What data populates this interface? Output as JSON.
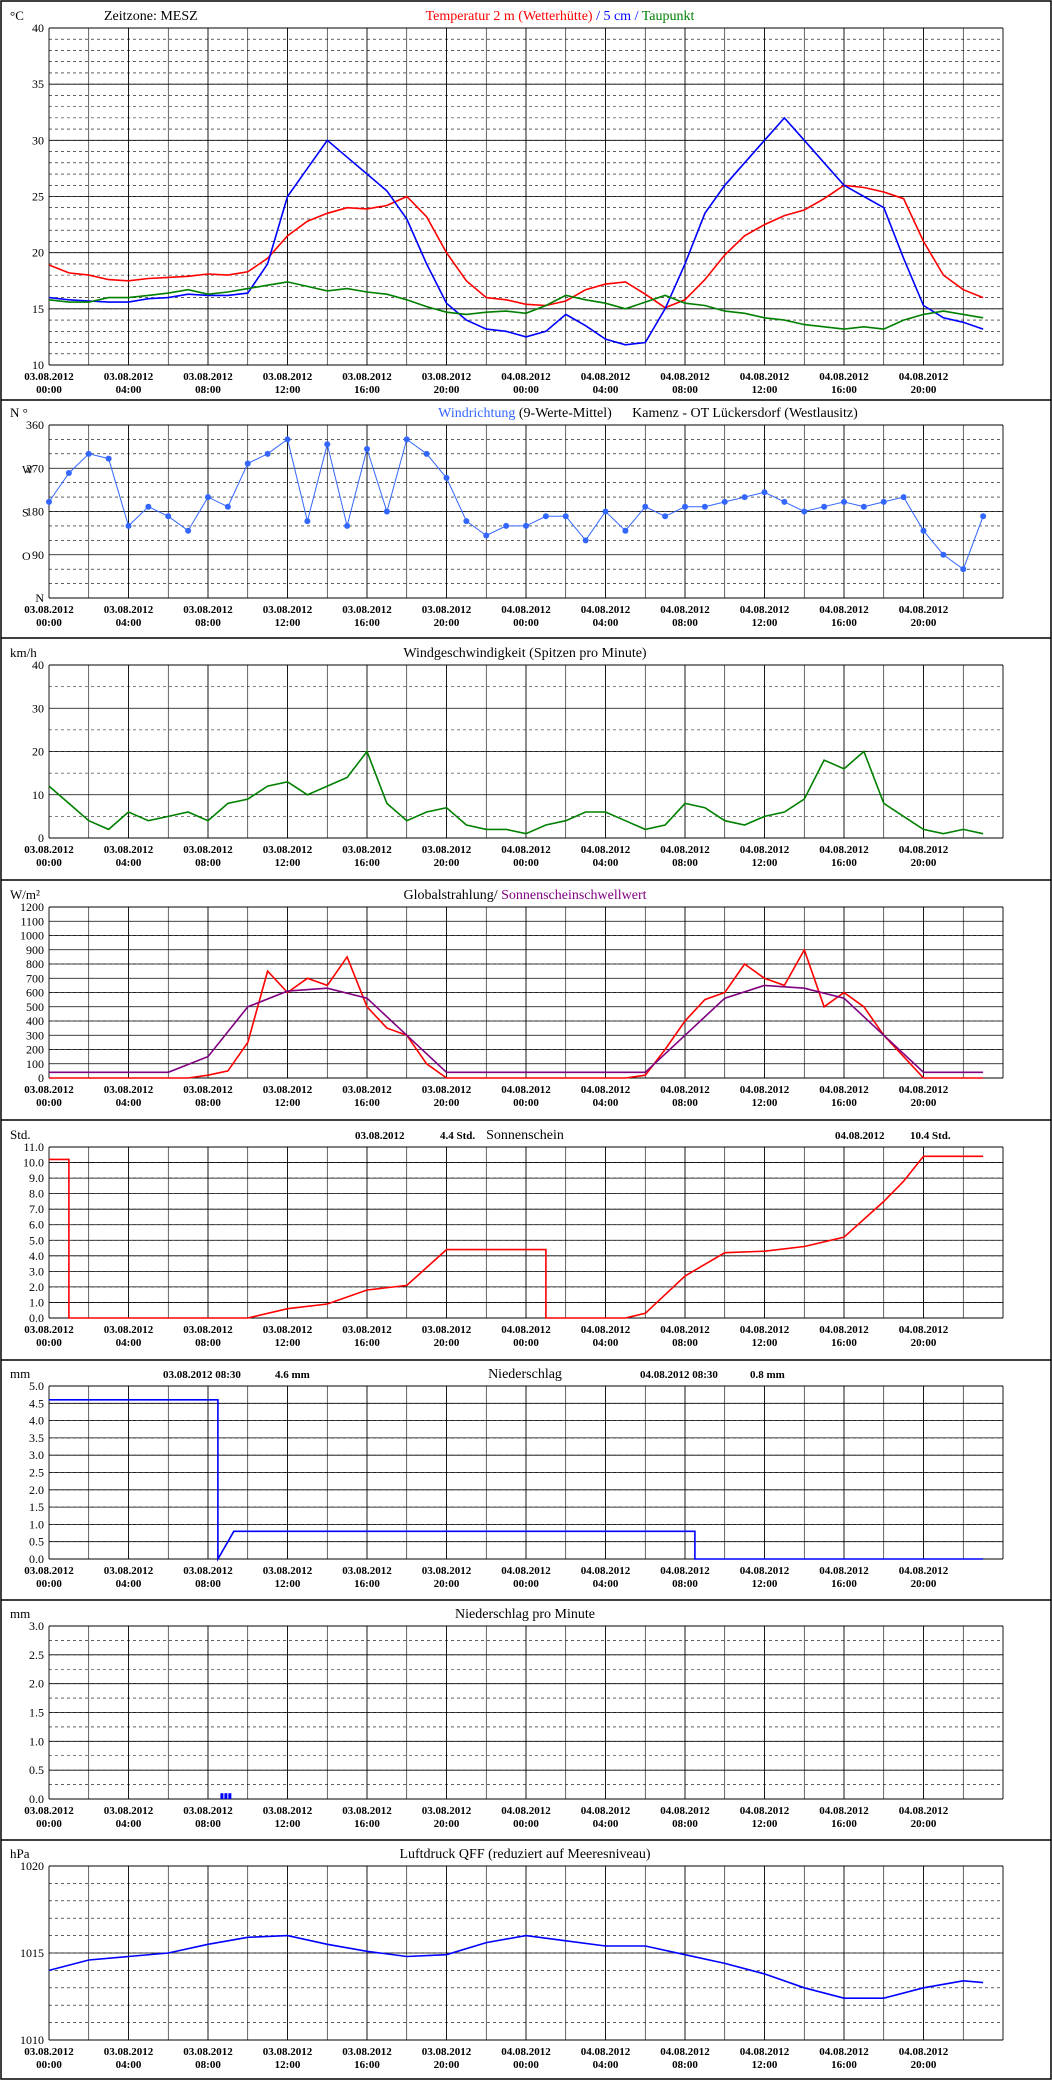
{
  "x_ticks": [
    [
      "03.08.2012",
      "00:00"
    ],
    [
      "03.08.2012",
      "04:00"
    ],
    [
      "03.08.2012",
      "08:00"
    ],
    [
      "03.08.2012",
      "12:00"
    ],
    [
      "03.08.2012",
      "16:00"
    ],
    [
      "03.08.2012",
      "20:00"
    ],
    [
      "04.08.2012",
      "00:00"
    ],
    [
      "04.08.2012",
      "04:00"
    ],
    [
      "04.08.2012",
      "08:00"
    ],
    [
      "04.08.2012",
      "12:00"
    ],
    [
      "04.08.2012",
      "16:00"
    ],
    [
      "04.08.2012",
      "20:00"
    ]
  ],
  "chart_data": [
    {
      "type": "line",
      "unit": "°C",
      "timezone_label": "Zeitzone: MESZ",
      "title_parts": [
        {
          "text": "Temperatur 2 m (Wetterhütte)",
          "color": "#ff0000"
        },
        {
          "text": "  /  ",
          "color": "#0000ff"
        },
        {
          "text": "5 cm",
          "color": "#0000ff"
        },
        {
          "text": " / ",
          "color": "#0000ff"
        },
        {
          "text": "Taupunkt",
          "color": "#008000"
        }
      ],
      "ylim": [
        10,
        40
      ],
      "yticks": [
        "10",
        "15",
        "20",
        "25",
        "30",
        "35",
        "40"
      ],
      "series": [
        {
          "name": "Temperatur 2 m (Wetterhütte)",
          "color": "#ff0000",
          "x": [
            0,
            1,
            2,
            3,
            4,
            5,
            6,
            7,
            8,
            9,
            10,
            11,
            12,
            13,
            14,
            15,
            16,
            17,
            18,
            19,
            20,
            21,
            22,
            23,
            24,
            25,
            26,
            27,
            28,
            29,
            30,
            31,
            32,
            33,
            34,
            35,
            36,
            37,
            38,
            39,
            40,
            41,
            42,
            43,
            44,
            45,
            46,
            47
          ],
          "y": [
            18.9,
            18.2,
            18.0,
            17.6,
            17.5,
            17.7,
            17.8,
            17.9,
            18.1,
            18.0,
            18.3,
            19.5,
            21.5,
            22.8,
            23.5,
            24.0,
            23.9,
            24.2,
            25.0,
            23.2,
            20.0,
            17.5,
            16.0,
            15.8,
            15.4,
            15.3,
            15.7,
            16.7,
            17.2,
            17.4,
            16.3,
            15.1,
            15.8,
            17.6,
            19.8,
            21.5,
            22.5,
            23.3,
            23.8,
            24.8,
            26.0,
            25.8,
            25.4,
            24.8,
            21.0,
            18.0,
            16.7,
            16.0
          ]
        },
        {
          "name": "5 cm",
          "color": "#0000ff",
          "x": [
            0,
            1,
            2,
            3,
            4,
            5,
            6,
            7,
            8,
            9,
            10,
            11,
            12,
            13,
            14,
            15,
            16,
            17,
            18,
            19,
            20,
            21,
            22,
            23,
            24,
            25,
            26,
            27,
            28,
            29,
            30,
            31,
            32,
            33,
            34,
            35,
            36,
            37,
            38,
            39,
            40,
            41,
            42,
            43,
            44,
            45,
            46,
            47
          ],
          "y": [
            16.0,
            15.8,
            15.7,
            15.6,
            15.6,
            15.9,
            16.0,
            16.3,
            16.2,
            16.2,
            16.4,
            19.0,
            25.0,
            27.5,
            30.0,
            28.5,
            27.0,
            25.5,
            23.0,
            19.0,
            15.5,
            14.0,
            13.2,
            13.0,
            12.5,
            13.0,
            14.5,
            13.5,
            12.3,
            11.8,
            12.0,
            15.0,
            19.0,
            23.5,
            26.0,
            28.0,
            30.0,
            32.0,
            30.0,
            28.0,
            26.0,
            25.0,
            24.0,
            19.5,
            15.3,
            14.2,
            13.8,
            13.2
          ]
        },
        {
          "name": "Taupunkt",
          "color": "#008000",
          "x": [
            0,
            1,
            2,
            3,
            4,
            5,
            6,
            7,
            8,
            9,
            10,
            11,
            12,
            13,
            14,
            15,
            16,
            17,
            18,
            19,
            20,
            21,
            22,
            23,
            24,
            25,
            26,
            27,
            28,
            29,
            30,
            31,
            32,
            33,
            34,
            35,
            36,
            37,
            38,
            39,
            40,
            41,
            42,
            43,
            44,
            45,
            46,
            47
          ],
          "y": [
            15.8,
            15.6,
            15.6,
            16.0,
            16.0,
            16.2,
            16.4,
            16.7,
            16.3,
            16.5,
            16.8,
            17.1,
            17.4,
            17.0,
            16.6,
            16.8,
            16.5,
            16.3,
            15.8,
            15.2,
            14.7,
            14.5,
            14.7,
            14.8,
            14.6,
            15.3,
            16.2,
            15.8,
            15.5,
            15.0,
            15.6,
            16.2,
            15.5,
            15.3,
            14.8,
            14.6,
            14.2,
            14.0,
            13.6,
            13.4,
            13.2,
            13.4,
            13.2,
            14.0,
            14.5,
            14.8,
            14.5,
            14.2
          ]
        }
      ]
    },
    {
      "type": "scatter",
      "unit": "N °",
      "title_parts": [
        {
          "text": "Windrichtung",
          "color": "#3366ff"
        },
        {
          "text": " (9-Werte-Mittel)",
          "color": "#000000"
        }
      ],
      "title_right": "Kamenz - OT Lückersdorf (Westlausitz)",
      "ylim": [
        0,
        360
      ],
      "yticks": [
        "N",
        "90",
        "180",
        "270",
        "360"
      ],
      "ycard": [
        "O",
        "S",
        "W"
      ],
      "series": [
        {
          "name": "Windrichtung",
          "color": "#3366ff",
          "x": [
            0,
            1,
            2,
            3,
            4,
            5,
            6,
            7,
            8,
            9,
            10,
            11,
            12,
            13,
            14,
            15,
            16,
            17,
            18,
            19,
            20,
            21,
            22,
            23,
            24,
            25,
            26,
            27,
            28,
            29,
            30,
            31,
            32,
            33,
            34,
            35,
            36,
            37,
            38,
            39,
            40,
            41,
            42,
            43,
            44,
            45,
            46,
            47
          ],
          "y": [
            200,
            260,
            300,
            290,
            150,
            190,
            170,
            140,
            210,
            190,
            280,
            300,
            330,
            160,
            320,
            150,
            310,
            180,
            330,
            300,
            250,
            160,
            130,
            150,
            150,
            170,
            170,
            120,
            180,
            140,
            190,
            170,
            190,
            190,
            200,
            210,
            220,
            200,
            180,
            190,
            200,
            190,
            200,
            210,
            140,
            90,
            60,
            170
          ]
        }
      ]
    },
    {
      "type": "line",
      "unit": "km/h",
      "title_parts": [
        {
          "text": "Windgeschwindigkeit (Spitzen pro Minute)",
          "color": "#000000"
        }
      ],
      "ylim": [
        0,
        40
      ],
      "yticks": [
        "0",
        "10",
        "20",
        "30",
        "40"
      ],
      "series": [
        {
          "name": "Windgeschwindigkeit",
          "color": "#008000",
          "x": [
            0,
            1,
            2,
            3,
            4,
            5,
            6,
            7,
            8,
            9,
            10,
            11,
            12,
            13,
            14,
            15,
            16,
            17,
            18,
            19,
            20,
            21,
            22,
            23,
            24,
            25,
            26,
            27,
            28,
            29,
            30,
            31,
            32,
            33,
            34,
            35,
            36,
            37,
            38,
            39,
            40,
            41,
            42,
            43,
            44,
            45,
            46,
            47
          ],
          "y": [
            12,
            8,
            4,
            2,
            6,
            4,
            5,
            6,
            4,
            8,
            9,
            12,
            13,
            10,
            12,
            14,
            20,
            8,
            4,
            6,
            7,
            3,
            2,
            2,
            1,
            3,
            4,
            6,
            6,
            4,
            2,
            3,
            8,
            7,
            4,
            3,
            5,
            6,
            9,
            18,
            16,
            20,
            8,
            5,
            2,
            1,
            2,
            1
          ]
        }
      ]
    },
    {
      "type": "line",
      "unit": "W/m²",
      "title_parts": [
        {
          "text": "Globalstrahlung/ ",
          "color": "#000000"
        },
        {
          "text": "Sonnenscheinschwellwert",
          "color": "#800080"
        }
      ],
      "ylim": [
        0,
        1200
      ],
      "yticks": [
        "0",
        "100",
        "200",
        "300",
        "400",
        "500",
        "600",
        "700",
        "800",
        "900",
        "1000",
        "1100",
        "1200"
      ],
      "series": [
        {
          "name": "Globalstrahlung",
          "color": "#ff0000",
          "x": [
            0,
            6,
            7,
            8,
            9,
            10,
            11,
            12,
            13,
            14,
            15,
            16,
            17,
            18,
            19,
            20,
            24,
            28,
            29,
            30,
            31,
            32,
            33,
            34,
            35,
            36,
            37,
            38,
            39,
            40,
            41,
            42,
            43,
            44,
            47
          ],
          "y": [
            0,
            0,
            0,
            20,
            50,
            250,
            750,
            600,
            700,
            650,
            850,
            500,
            350,
            300,
            100,
            0,
            0,
            0,
            0,
            20,
            200,
            400,
            550,
            600,
            800,
            700,
            650,
            900,
            500,
            600,
            500,
            300,
            150,
            0,
            0
          ]
        },
        {
          "name": "Sonnenscheinschwellwert",
          "color": "#800080",
          "x": [
            0,
            6,
            8,
            10,
            12,
            14,
            16,
            18,
            20,
            26,
            28,
            30,
            32,
            34,
            36,
            38,
            40,
            42,
            44,
            47
          ],
          "y": [
            40,
            40,
            150,
            500,
            610,
            630,
            560,
            300,
            40,
            40,
            40,
            40,
            300,
            560,
            650,
            630,
            560,
            300,
            40,
            40
          ]
        }
      ]
    },
    {
      "type": "line",
      "unit": "Std.",
      "title_parts": [
        {
          "text": "Sonnenschein",
          "color": "#000000"
        }
      ],
      "annotations": [
        {
          "date": "03.08.2012",
          "value": "4.4",
          "unit": "Std."
        },
        {
          "date": "04.08.2012",
          "value": "10.4",
          "unit": "Std."
        }
      ],
      "ylim": [
        0,
        11
      ],
      "yticks": [
        "0.0",
        "1.0",
        "2.0",
        "3.0",
        "4.0",
        "5.0",
        "6.0",
        "7.0",
        "8.0",
        "9.0",
        "10.0",
        "11.0"
      ],
      "series": [
        {
          "name": "Sonnenschein",
          "color": "#ff0000",
          "x": [
            0,
            1,
            1,
            10,
            12,
            14,
            16,
            18,
            20,
            24,
            25,
            25,
            29,
            30,
            32,
            34,
            36,
            38,
            40,
            42,
            43,
            44,
            47
          ],
          "y": [
            10.2,
            10.2,
            0,
            0,
            0.6,
            0.9,
            1.8,
            2.1,
            4.4,
            4.4,
            4.4,
            0,
            0,
            0.3,
            2.7,
            4.2,
            4.3,
            4.6,
            5.2,
            7.5,
            8.8,
            10.4,
            10.4
          ]
        }
      ]
    },
    {
      "type": "line",
      "unit": "mm",
      "title_parts": [
        {
          "text": "Niederschlag",
          "color": "#000000"
        }
      ],
      "annotations": [
        {
          "date": "03.08.2012 08:30",
          "value": "4.6",
          "unit": "mm"
        },
        {
          "date": "04.08.2012 08:30",
          "value": "0.8",
          "unit": "mm"
        }
      ],
      "ylim": [
        0,
        5
      ],
      "yticks": [
        "0.0",
        "0.5",
        "1.0",
        "1.5",
        "2.0",
        "2.5",
        "3.0",
        "3.5",
        "4.0",
        "4.5",
        "5.0"
      ],
      "series": [
        {
          "name": "Niederschlag",
          "color": "#0000ff",
          "x": [
            0,
            8.5,
            8.5,
            9.0,
            9.3,
            32.5,
            32.5,
            47
          ],
          "y": [
            4.6,
            4.6,
            0,
            0.5,
            0.8,
            0.8,
            0,
            0
          ]
        }
      ]
    },
    {
      "type": "bar",
      "unit": "mm",
      "title_parts": [
        {
          "text": "Niederschlag pro Minute",
          "color": "#000000"
        }
      ],
      "ylim": [
        0,
        3
      ],
      "yticks": [
        "0.0",
        "0.5",
        "1.0",
        "1.5",
        "2.0",
        "2.5",
        "3.0"
      ],
      "series": [
        {
          "name": "Niederschlag pro Minute",
          "color": "#0000ff",
          "x": [
            8.7,
            8.9,
            9.1
          ],
          "y": [
            0.1,
            0.1,
            0.1
          ]
        }
      ]
    },
    {
      "type": "line",
      "unit": "hPa",
      "title_parts": [
        {
          "text": "Luftdruck QFF (reduziert auf Meeresniveau)",
          "color": "#000000"
        }
      ],
      "ylim": [
        1010,
        1020
      ],
      "yticks": [
        "1010",
        "1015",
        "1020"
      ],
      "series": [
        {
          "name": "Luftdruck QFF",
          "color": "#0000ff",
          "x": [
            0,
            2,
            4,
            6,
            8,
            10,
            12,
            14,
            16,
            18,
            20,
            22,
            24,
            26,
            28,
            30,
            32,
            34,
            36,
            38,
            40,
            42,
            44,
            46,
            47
          ],
          "y": [
            1014.0,
            1014.6,
            1014.8,
            1015.0,
            1015.5,
            1015.9,
            1016.0,
            1015.5,
            1015.1,
            1014.8,
            1014.9,
            1015.6,
            1016.0,
            1015.7,
            1015.4,
            1015.4,
            1014.9,
            1014.4,
            1013.8,
            1013.0,
            1012.4,
            1012.4,
            1013.0,
            1013.4,
            1013.3
          ]
        }
      ]
    }
  ]
}
